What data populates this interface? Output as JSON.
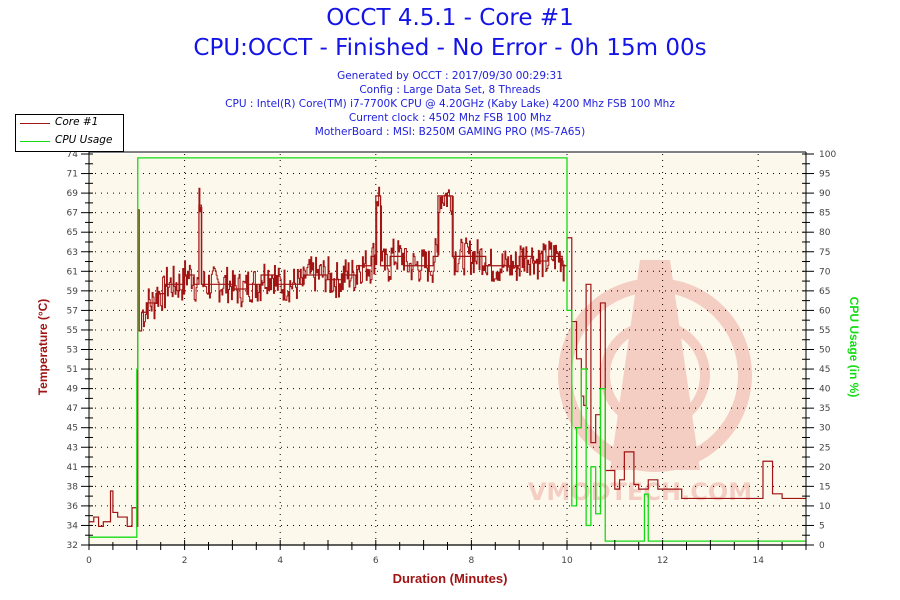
{
  "header": {
    "title": "OCCT 4.5.1 - Core #1",
    "subtitle": "CPU:OCCT - Finished - No Error - 0h 15m 00s",
    "info": [
      "Generated by OCCT : 2017/09/30 00:29:31",
      "Config : Large Data Set, 8 Threads",
      "CPU : Intel(R) Core(TM) i7-7700K CPU @ 4.20GHz (Kaby Lake) 4200 Mhz FSB 100 Mhz",
      "Current clock : 4502 Mhz FSB 100 Mhz",
      "MotherBoard : MSI: B250M GAMING PRO (MS-7A65)"
    ]
  },
  "legend": {
    "items": [
      {
        "label": "Core #1",
        "color": "#a01414"
      },
      {
        "label": "CPU Usage",
        "color": "#14dc14"
      }
    ]
  },
  "watermark": "VMODTECH.COM",
  "chart_data": {
    "type": "line",
    "title": "OCCT 4.5.1 - Core #1",
    "subtitle": "CPU:OCCT - Finished - No Error - 0h 15m 00s",
    "xlabel": "Duration (Minutes)",
    "ylabel": "Temperature (°C)",
    "ylabel_right": "CPU Usage (in %)",
    "xlim": [
      0,
      15
    ],
    "ylim": [
      32,
      74
    ],
    "ylim_right": [
      0,
      100
    ],
    "x_ticks": [
      "0",
      "2",
      "4",
      "6",
      "8",
      "10",
      "12",
      "14"
    ],
    "y_ticks_left": [
      "32",
      "34",
      "36",
      "38",
      "41",
      "43",
      "45",
      "47",
      "49",
      "51",
      "53",
      "55",
      "57",
      "59",
      "61",
      "63",
      "65",
      "67",
      "69",
      "71",
      "74"
    ],
    "y_ticks_right": [
      "0",
      "5",
      "10",
      "15",
      "20",
      "25",
      "30",
      "35",
      "40",
      "45",
      "50",
      "55",
      "60",
      "65",
      "70",
      "75",
      "80",
      "85",
      "90",
      "95",
      "100"
    ],
    "grid": true,
    "legend_position": "top-left",
    "background": "#fdf8ec",
    "series": [
      {
        "name": "Core #1",
        "axis": "left",
        "color": "#a01414",
        "x": [
          0,
          0.1,
          0.2,
          0.3,
          0.45,
          0.5,
          0.6,
          0.7,
          0.8,
          0.9,
          1.0,
          1.02,
          1.05,
          1.1,
          1.2,
          1.4,
          1.6,
          1.8,
          2.0,
          2.2,
          2.3,
          2.35,
          2.5,
          2.8,
          3.0,
          3.3,
          3.6,
          3.9,
          4.0,
          4.2,
          4.5,
          4.8,
          5.0,
          5.3,
          5.6,
          5.9,
          6.0,
          6.1,
          6.3,
          6.6,
          6.9,
          7.2,
          7.3,
          7.6,
          8.0,
          8.3,
          8.6,
          8.9,
          9.0,
          9.3,
          9.6,
          9.9,
          10.0,
          10.1,
          10.2,
          10.3,
          10.35,
          10.4,
          10.5,
          10.6,
          10.7,
          10.8,
          11.0,
          11.1,
          11.2,
          11.4,
          11.5,
          11.7,
          11.9,
          12.0,
          12.2,
          12.4,
          12.6,
          13.0,
          13.4,
          13.6,
          13.9,
          14.0,
          14.1,
          14.3,
          14.5,
          15.0
        ],
        "values": [
          34.5,
          35,
          34,
          34.5,
          37.8,
          35.5,
          35,
          35,
          34,
          36,
          34,
          68,
          55,
          57,
          58,
          59,
          60,
          60,
          61,
          60,
          68.5,
          60,
          60,
          60,
          59.5,
          60,
          61,
          60,
          60,
          60,
          61,
          61,
          60.5,
          61,
          62,
          63,
          69.5,
          62,
          63,
          62,
          62,
          63,
          69.5,
          63,
          63,
          62,
          62,
          62,
          63,
          62.5,
          63,
          62,
          65,
          56,
          52,
          48,
          47,
          60,
          43,
          46,
          58,
          40,
          38,
          39,
          42,
          38.5,
          38,
          39,
          38,
          38,
          38,
          37,
          37,
          37,
          37,
          37,
          37,
          37,
          41,
          37.5,
          37,
          37
        ]
      },
      {
        "name": "CPU Usage",
        "axis": "right",
        "color": "#14dc14",
        "x": [
          0,
          0.5,
          0.99,
          1.0,
          1.02,
          9.95,
          10.0,
          10.1,
          10.2,
          10.3,
          10.4,
          10.5,
          10.6,
          10.7,
          10.8,
          11.0,
          11.6,
          11.62,
          11.7,
          12.0,
          13.0,
          14.0,
          15.0
        ],
        "values": [
          2,
          2,
          2,
          45,
          99,
          99,
          60,
          10,
          30,
          45,
          5,
          20,
          8,
          40,
          1,
          1,
          1,
          13,
          1,
          1,
          1,
          1,
          1
        ]
      }
    ]
  }
}
